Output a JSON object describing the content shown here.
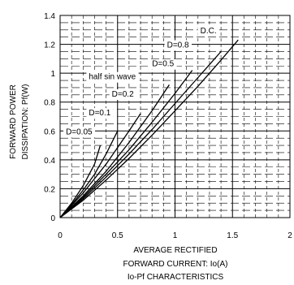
{
  "chart_data": {
    "type": "line",
    "title": "Io-Pf CHARACTERISTICS",
    "xlabel_lines": [
      "AVERAGE RECTIFIED",
      "FORWARD CURRENT: Io(A)"
    ],
    "ylabel_lines": [
      "FORWARD POWER",
      "DISSIPATION: Pf(W)"
    ],
    "xlim": [
      0,
      2
    ],
    "ylim": [
      0,
      1.4
    ],
    "x_ticks": [
      0,
      0.5,
      1,
      1.5,
      2
    ],
    "x_tick_labels": [
      "0",
      "0.5",
      "1",
      "1.5",
      "2"
    ],
    "y_ticks": [
      0,
      0.2,
      0.4,
      0.6,
      0.8,
      1.0,
      1.2,
      1.4
    ],
    "y_tick_labels": [
      "0",
      "0.2",
      "0.4",
      "0.6",
      "0.8",
      "1",
      "1.2",
      "1.4"
    ],
    "grid": true,
    "legend": "none",
    "series": [
      {
        "name": "D=0.05",
        "x": [
          0,
          0.1,
          0.2,
          0.3,
          0.35
        ],
        "y": [
          0,
          0.1,
          0.22,
          0.37,
          0.5
        ]
      },
      {
        "name": "D=0.1",
        "x": [
          0,
          0.1,
          0.2,
          0.3,
          0.4,
          0.5
        ],
        "y": [
          0,
          0.09,
          0.19,
          0.3,
          0.44,
          0.6
        ]
      },
      {
        "name": "D=0.2",
        "x": [
          0,
          0.2,
          0.4,
          0.6,
          0.7
        ],
        "y": [
          0,
          0.17,
          0.37,
          0.6,
          0.72
        ]
      },
      {
        "name": "half sin wave",
        "x": [
          0,
          0.2,
          0.4,
          0.6,
          0.8,
          0.95
        ],
        "y": [
          0,
          0.15,
          0.32,
          0.52,
          0.74,
          0.92
        ]
      },
      {
        "name": "D=0.5",
        "x": [
          0,
          0.2,
          0.4,
          0.6,
          0.8,
          1.0,
          1.15
        ],
        "y": [
          0,
          0.14,
          0.3,
          0.47,
          0.66,
          0.86,
          1.02
        ]
      },
      {
        "name": "D=0.8",
        "x": [
          0,
          0.2,
          0.4,
          0.6,
          0.8,
          1.0,
          1.2,
          1.4
        ],
        "y": [
          0,
          0.13,
          0.28,
          0.44,
          0.61,
          0.79,
          0.97,
          1.15
        ]
      },
      {
        "name": "D.C.",
        "x": [
          0,
          0.2,
          0.4,
          0.6,
          0.8,
          1.0,
          1.2,
          1.4,
          1.55
        ],
        "y": [
          0,
          0.12,
          0.26,
          0.41,
          0.57,
          0.74,
          0.91,
          1.09,
          1.23
        ]
      }
    ],
    "annotations": [
      {
        "text": "D=0.05",
        "x": 0.05,
        "y": 0.6
      },
      {
        "text": "D=0.1",
        "x": 0.25,
        "y": 0.73
      },
      {
        "text": "D=0.2",
        "x": 0.45,
        "y": 0.86
      },
      {
        "text": "half sin wave",
        "x": 0.25,
        "y": 0.98
      },
      {
        "text": "D=0.5",
        "x": 0.8,
        "y": 1.07
      },
      {
        "text": "D=0.8",
        "x": 0.93,
        "y": 1.2
      },
      {
        "text": "D.C.",
        "x": 1.22,
        "y": 1.3
      }
    ]
  }
}
